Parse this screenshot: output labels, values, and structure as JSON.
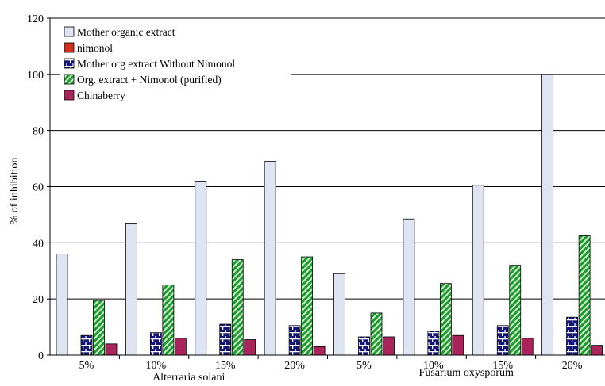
{
  "chart_data": {
    "type": "bar",
    "title": "",
    "xlabel": "",
    "ylabel": "% of inhibition",
    "ylim": [
      0,
      120
    ],
    "yticks": [
      0,
      20,
      40,
      60,
      80,
      100,
      120
    ],
    "grid": true,
    "legend_position": "top-left",
    "categories": [
      "5%",
      "10%",
      "15%",
      "20%",
      "5%",
      "10%",
      "15%",
      "20%"
    ],
    "groups": [
      {
        "label": "Alterraria solani",
        "categories": [
          0,
          1,
          2,
          3
        ]
      },
      {
        "label": "Fusarium oxysporum",
        "categories": [
          4,
          5,
          6,
          7
        ]
      }
    ],
    "series": [
      {
        "name": "Mother organic extract",
        "color": "#dfe4f3",
        "pattern": "solid",
        "values": [
          36,
          47,
          62,
          69,
          29,
          48.5,
          60.5,
          100
        ]
      },
      {
        "name": "nimonol",
        "color": "#d42e1e",
        "pattern": "solid",
        "values": [
          null,
          null,
          null,
          null,
          null,
          null,
          null,
          null
        ]
      },
      {
        "name": "Mother org extract Without Nimonol",
        "color": "#14147a",
        "pattern": "bricks",
        "values": [
          7,
          8,
          11,
          10.5,
          6.5,
          8.5,
          10.5,
          13.5
        ]
      },
      {
        "name": "Org. extract + Nimonol (purified)",
        "color": "#1e9a2e",
        "pattern": "diagonal",
        "values": [
          19.5,
          25,
          34,
          35,
          15,
          25.5,
          32,
          42.5
        ]
      },
      {
        "name": "Chinaberry",
        "color": "#a8245a",
        "pattern": "solid",
        "values": [
          4,
          6,
          5.5,
          3,
          6.5,
          7,
          6,
          3.5
        ]
      }
    ]
  }
}
